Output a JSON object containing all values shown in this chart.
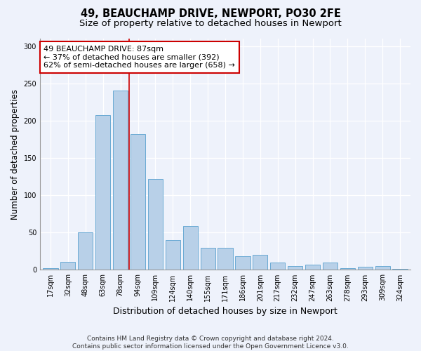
{
  "title": "49, BEAUCHAMP DRIVE, NEWPORT, PO30 2FE",
  "subtitle": "Size of property relative to detached houses in Newport",
  "xlabel": "Distribution of detached houses by size in Newport",
  "ylabel": "Number of detached properties",
  "footer_line1": "Contains HM Land Registry data © Crown copyright and database right 2024.",
  "footer_line2": "Contains public sector information licensed under the Open Government Licence v3.0.",
  "bar_labels": [
    "17sqm",
    "32sqm",
    "48sqm",
    "63sqm",
    "78sqm",
    "94sqm",
    "109sqm",
    "124sqm",
    "140sqm",
    "155sqm",
    "171sqm",
    "186sqm",
    "201sqm",
    "217sqm",
    "232sqm",
    "247sqm",
    "263sqm",
    "278sqm",
    "293sqm",
    "309sqm",
    "324sqm"
  ],
  "bar_values": [
    2,
    11,
    50,
    207,
    240,
    182,
    122,
    40,
    59,
    30,
    30,
    18,
    20,
    10,
    5,
    7,
    10,
    2,
    4,
    5,
    1
  ],
  "bar_color": "#b8d0e8",
  "bar_edge_color": "#6aaad4",
  "vline_color": "#cc0000",
  "vline_x_index": 4.5,
  "annotation_title": "49 BEAUCHAMP DRIVE: 87sqm",
  "annotation_line1": "← 37% of detached houses are smaller (392)",
  "annotation_line2": "62% of semi-detached houses are larger (658) →",
  "annotation_box_color": "#cc0000",
  "ylim": [
    0,
    310
  ],
  "yticks": [
    0,
    50,
    100,
    150,
    200,
    250,
    300
  ],
  "background_color": "#eef2fb",
  "plot_bg_color": "#eef2fb",
  "title_fontsize": 10.5,
  "subtitle_fontsize": 9.5,
  "ylabel_fontsize": 8.5,
  "xlabel_fontsize": 9,
  "annotation_fontsize": 8,
  "tick_fontsize": 7,
  "footer_fontsize": 6.5
}
